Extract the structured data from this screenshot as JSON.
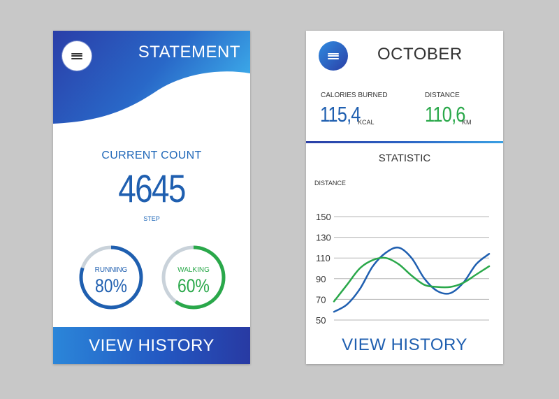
{
  "statement_card": {
    "title": "STATEMENT",
    "menu_icon": "hamburger-icon",
    "count_label": "CURRENT COUNT",
    "count_value": "4645",
    "count_unit": "STEP",
    "rings": [
      {
        "label": "RUNNING",
        "value": "80%",
        "fraction": 0.8,
        "color": "#1f5fb0"
      },
      {
        "label": "WALKING",
        "value": "60%",
        "fraction": 0.6,
        "color": "#2aa84a"
      }
    ],
    "footer_button": "VIEW HISTORY"
  },
  "month_card": {
    "title": "OCTOBER",
    "menu_icon": "hamburger-icon",
    "calories": {
      "label": "CALORIES BURNED",
      "value": "115,4",
      "unit": "KCAL"
    },
    "distance": {
      "label": "DISTANCE",
      "value": "110,6",
      "unit": "KM"
    },
    "section_title": "STATISTIC",
    "axis_title": "DISTANCE",
    "footer_button": "VIEW HISTORY"
  },
  "colors": {
    "blue": "#1f5fb0",
    "green": "#2aa84a",
    "ring_track": "#c9d2da"
  },
  "chart_data": {
    "type": "line",
    "ylabel": "DISTANCE",
    "yticks": [
      150,
      130,
      110,
      90,
      70,
      50
    ],
    "ylim": [
      50,
      150
    ],
    "grid": true,
    "x": [
      0,
      1,
      2,
      3,
      4,
      5,
      6,
      7,
      8,
      9,
      10,
      11,
      12
    ],
    "series": [
      {
        "color": "#1f5fb0",
        "values": [
          58,
          65,
          80,
          102,
          115,
          120,
          110,
          90,
          78,
          76,
          86,
          104,
          114
        ]
      },
      {
        "color": "#2aa84a",
        "values": [
          68,
          84,
          100,
          108,
          110,
          104,
          93,
          84,
          82,
          82,
          86,
          94,
          102
        ]
      }
    ]
  }
}
